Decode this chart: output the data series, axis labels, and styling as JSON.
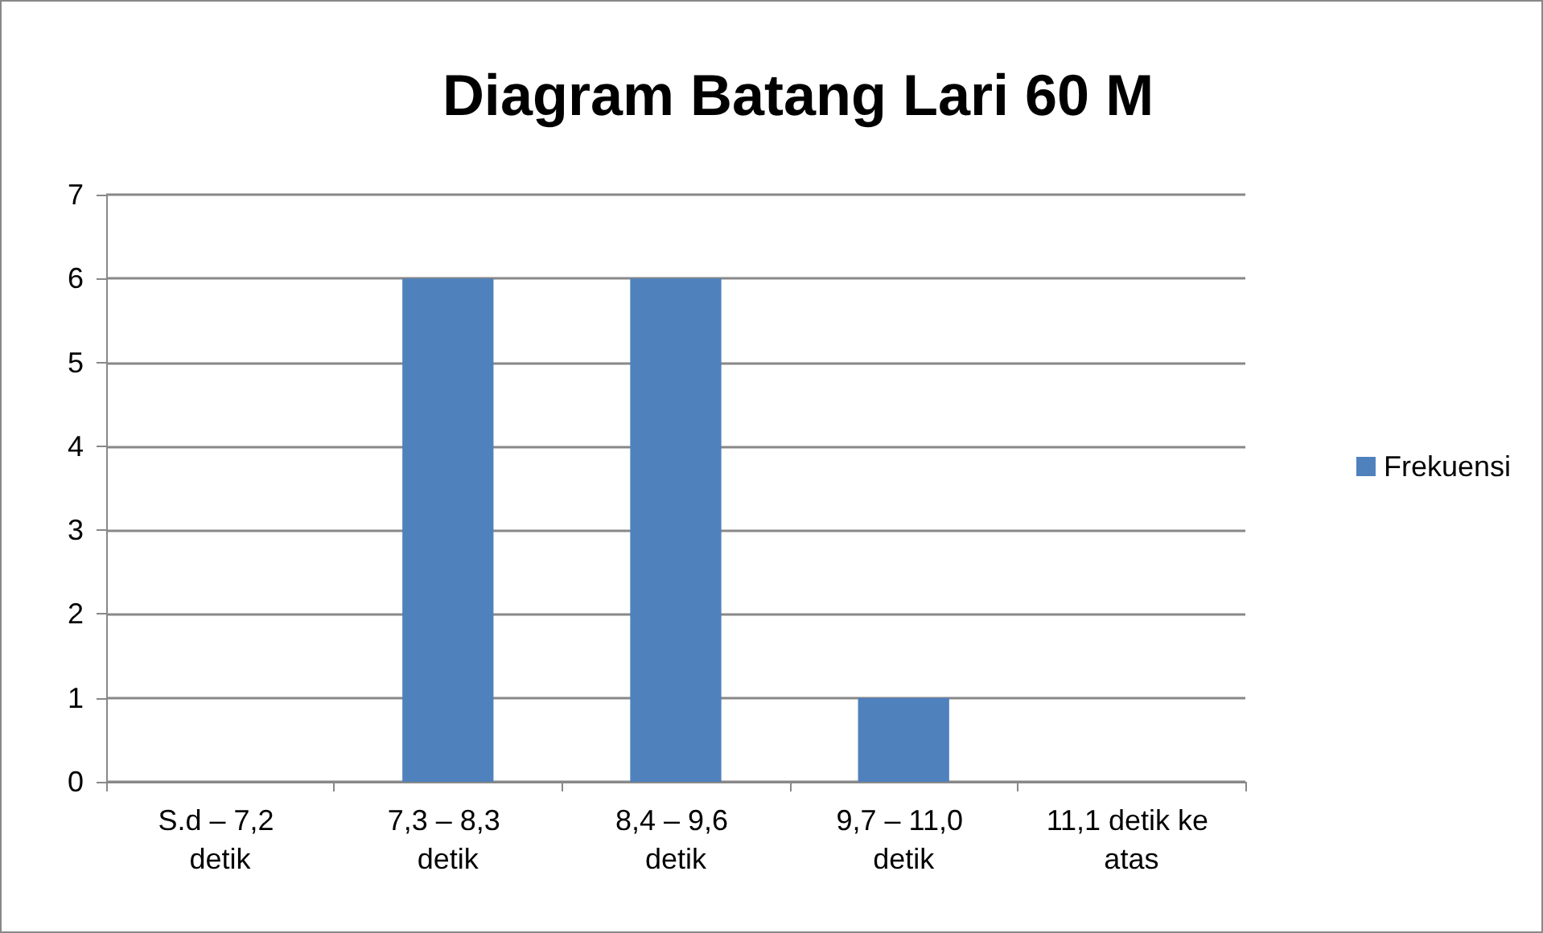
{
  "chart_data": {
    "type": "bar",
    "title": "Diagram Batang Lari 60 M",
    "categories": [
      "S.d – 7,2 detik",
      "7,3 – 8,3 detik",
      "8,4 – 9,6 detik",
      "9,7 – 11,0 detik",
      "11,1 detik ke atas"
    ],
    "series": [
      {
        "name": "Frekuensi",
        "color": "#4f81bd",
        "values": [
          0,
          6,
          6,
          1,
          0
        ]
      }
    ],
    "ylim": [
      0,
      7
    ],
    "yticks": [
      0,
      1,
      2,
      3,
      4,
      5,
      6,
      7
    ],
    "grid": "y",
    "legend": "right"
  }
}
